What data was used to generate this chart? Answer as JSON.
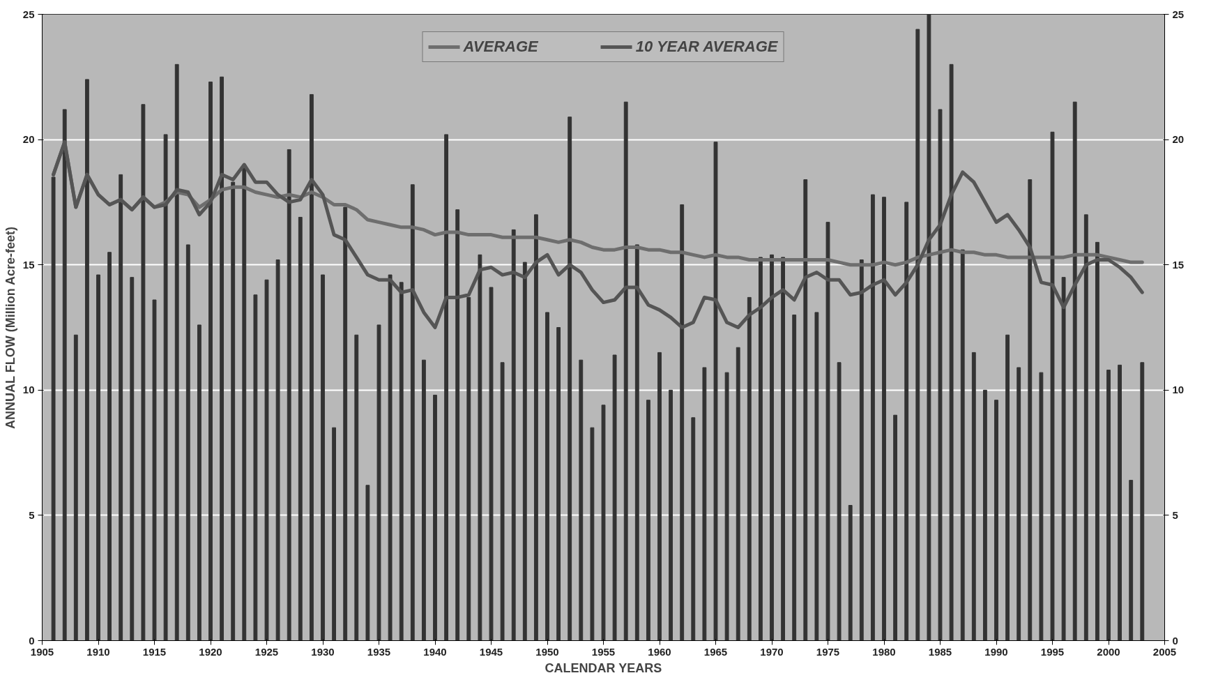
{
  "chart_data": {
    "type": "bar",
    "xlabel": "CALENDAR YEARS",
    "ylabel": "ANNUAL FLOW (Million Acre-feet)",
    "x": [
      1906,
      1907,
      1908,
      1909,
      1910,
      1911,
      1912,
      1913,
      1914,
      1915,
      1916,
      1917,
      1918,
      1919,
      1920,
      1921,
      1922,
      1923,
      1924,
      1925,
      1926,
      1927,
      1928,
      1929,
      1930,
      1931,
      1932,
      1933,
      1934,
      1935,
      1936,
      1937,
      1938,
      1939,
      1940,
      1941,
      1942,
      1943,
      1944,
      1945,
      1946,
      1947,
      1948,
      1949,
      1950,
      1951,
      1952,
      1953,
      1954,
      1955,
      1956,
      1957,
      1958,
      1959,
      1960,
      1961,
      1962,
      1963,
      1964,
      1965,
      1966,
      1967,
      1968,
      1969,
      1970,
      1971,
      1972,
      1973,
      1974,
      1975,
      1976,
      1977,
      1978,
      1979,
      1980,
      1981,
      1982,
      1983,
      1984,
      1985,
      1986,
      1987,
      1988,
      1989,
      1990,
      1991,
      1992,
      1993,
      1994,
      1995,
      1996,
      1997,
      1998,
      1999,
      2000,
      2001,
      2002,
      2003
    ],
    "series": [
      {
        "color": "#333333",
        "values": [
          18.5,
          21.2,
          12.2,
          22.4,
          14.6,
          15.5,
          18.6,
          14.5,
          21.4,
          13.6,
          20.2,
          23.0,
          15.8,
          12.6,
          22.3,
          22.5,
          18.3,
          19.0,
          13.8,
          14.4,
          15.2,
          19.6,
          16.9,
          21.8,
          14.6,
          8.5,
          17.3,
          12.2,
          6.2,
          12.6,
          14.6,
          14.3,
          18.2,
          11.2,
          9.8,
          20.2,
          17.2,
          13.7,
          15.4,
          14.1,
          11.1,
          16.4,
          15.1,
          17.0,
          13.1,
          12.5,
          20.9,
          11.2,
          8.5,
          9.4,
          11.4,
          21.5,
          15.8,
          9.6,
          11.5,
          10.0,
          17.4,
          8.9,
          10.9,
          19.9,
          10.7,
          11.7,
          13.7,
          15.3,
          15.4,
          15.3,
          13.0,
          18.4,
          13.1,
          16.7,
          11.1,
          5.4,
          15.2,
          17.8,
          17.7,
          9.0,
          17.5,
          24.4,
          25.0,
          21.2,
          23.0,
          15.6,
          11.5,
          10.0,
          9.6,
          12.2,
          10.9,
          18.4,
          10.7,
          20.3,
          14.5,
          21.5,
          17.0,
          15.9,
          10.8,
          11.0,
          6.4,
          11.1
        ]
      },
      {
        "type": "line",
        "name": "AVERAGE",
        "color": "#6e6e6e",
        "values": [
          18.6,
          19.9,
          17.3,
          18.6,
          17.8,
          17.4,
          17.6,
          17.2,
          17.7,
          17.3,
          17.5,
          17.9,
          17.8,
          17.3,
          17.6,
          18.0,
          18.1,
          18.1,
          17.9,
          17.8,
          17.7,
          17.8,
          17.7,
          17.9,
          17.7,
          17.4,
          17.4,
          17.2,
          16.8,
          16.7,
          16.6,
          16.5,
          16.5,
          16.4,
          16.2,
          16.3,
          16.3,
          16.2,
          16.2,
          16.2,
          16.1,
          16.1,
          16.1,
          16.1,
          16.0,
          15.9,
          16.0,
          15.9,
          15.7,
          15.6,
          15.6,
          15.7,
          15.7,
          15.6,
          15.6,
          15.5,
          15.5,
          15.4,
          15.3,
          15.4,
          15.3,
          15.3,
          15.2,
          15.2,
          15.2,
          15.2,
          15.2,
          15.2,
          15.2,
          15.2,
          15.1,
          15.0,
          15.0,
          15.0,
          15.1,
          15.0,
          15.1,
          15.3,
          15.4,
          15.5,
          15.6,
          15.5,
          15.5,
          15.4,
          15.4,
          15.3,
          15.3,
          15.3,
          15.3,
          15.3,
          15.3,
          15.4,
          15.4,
          15.4,
          15.3,
          15.2,
          15.1,
          15.1
        ]
      },
      {
        "type": "line",
        "name": "10 YEAR AVERAGE",
        "color": "#555555",
        "values": [
          18.6,
          19.9,
          17.3,
          18.6,
          17.8,
          17.4,
          17.6,
          17.2,
          17.7,
          17.3,
          17.4,
          18.0,
          17.9,
          17.0,
          17.5,
          18.6,
          18.4,
          19.0,
          18.3,
          18.3,
          17.8,
          17.5,
          17.6,
          18.4,
          17.8,
          16.2,
          16.0,
          15.3,
          14.6,
          14.4,
          14.4,
          13.9,
          14.0,
          13.1,
          12.5,
          13.7,
          13.7,
          13.8,
          14.8,
          14.9,
          14.6,
          14.7,
          14.5,
          15.1,
          15.4,
          14.6,
          15.0,
          14.7,
          14.0,
          13.5,
          13.6,
          14.1,
          14.1,
          13.4,
          13.2,
          12.9,
          12.5,
          12.7,
          13.7,
          13.6,
          12.7,
          12.5,
          13.0,
          13.3,
          13.7,
          14.0,
          13.6,
          14.5,
          14.7,
          14.4,
          14.4,
          13.8,
          13.9,
          14.2,
          14.4,
          13.8,
          14.3,
          15.0,
          16.0,
          16.6,
          17.8,
          18.7,
          18.3,
          17.5,
          16.7,
          17.0,
          16.4,
          15.7,
          14.3,
          14.2,
          13.3,
          14.2,
          15.0,
          15.2,
          15.2,
          14.9,
          14.5,
          13.9
        ]
      }
    ],
    "xlim": [
      1905,
      2005
    ],
    "xticks": [
      1905,
      1910,
      1915,
      1920,
      1925,
      1930,
      1935,
      1940,
      1945,
      1950,
      1955,
      1960,
      1965,
      1970,
      1975,
      1980,
      1985,
      1990,
      1995,
      2000,
      2005
    ],
    "ylim": [
      0,
      25
    ],
    "yticks": [
      0,
      5,
      10,
      15,
      20,
      25
    ],
    "y2lim": [
      0,
      25
    ],
    "y2ticks": [
      0,
      5,
      10,
      15,
      20,
      25
    ],
    "grid": "y",
    "legend": "top"
  }
}
